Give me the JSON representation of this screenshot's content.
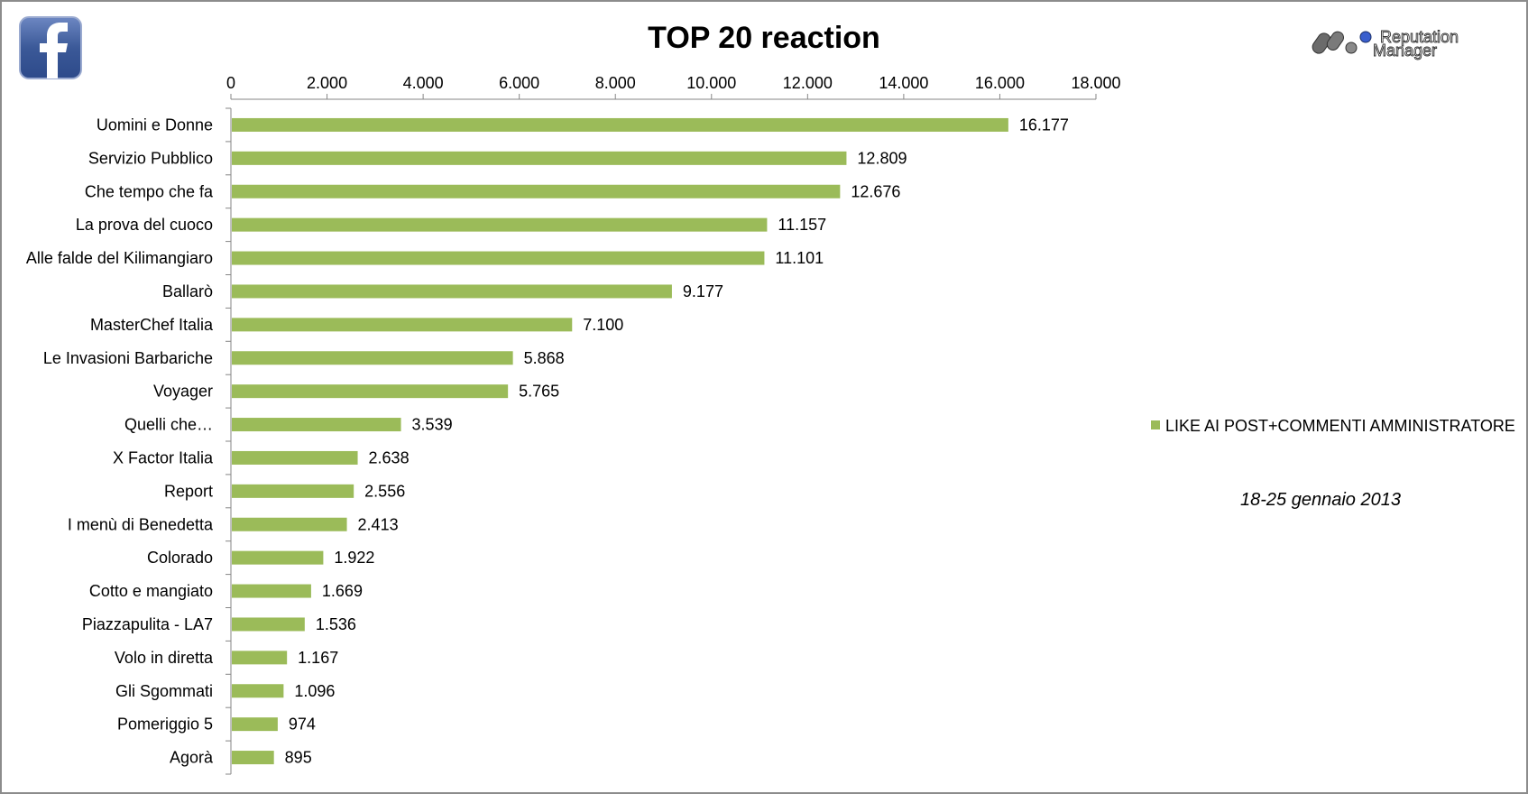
{
  "logos": {
    "facebook_icon": "facebook-icon",
    "brand_line1": "Reputation",
    "brand_line2": "Manager"
  },
  "date_note": "18-25 gennaio 2013",
  "colors": {
    "bar": "#9bbb59",
    "facebook_blue": "#3b5998",
    "axis": "#868686",
    "border": "#8c8c8c"
  },
  "chart_data": {
    "type": "bar",
    "orientation": "horizontal",
    "title": "TOP 20 reaction",
    "xlabel": "",
    "ylabel": "",
    "xlim": [
      0,
      18000
    ],
    "ticks": [
      0,
      2000,
      4000,
      6000,
      8000,
      10000,
      12000,
      14000,
      16000,
      18000
    ],
    "tick_labels": [
      "0",
      "2.000",
      "4.000",
      "6.000",
      "8.000",
      "10.000",
      "12.000",
      "14.000",
      "16.000",
      "18.000"
    ],
    "grid": false,
    "legend_position": "right",
    "categories": [
      "Uomini e Donne",
      "Servizio Pubblico",
      "Che tempo che fa",
      "La prova del cuoco",
      "Alle falde del Kilimangiaro",
      "Ballarò",
      "MasterChef Italia",
      "Le Invasioni Barbariche",
      "Voyager",
      "Quelli che…",
      "X Factor Italia",
      "Report",
      "I menù di Benedetta",
      "Colorado",
      "Cotto e mangiato",
      "Piazzapulita - LA7",
      "Volo in diretta",
      "Gli Sgommati",
      "Pomeriggio 5",
      "Agorà"
    ],
    "series": [
      {
        "name": "LIKE AI POST+COMMENTI AMMINISTRATORE",
        "values": [
          16177,
          12809,
          12676,
          11157,
          11101,
          9177,
          7100,
          5868,
          5765,
          3539,
          2638,
          2556,
          2413,
          1922,
          1669,
          1536,
          1167,
          1096,
          974,
          895
        ],
        "labels": [
          "16.177",
          "12.809",
          "12.676",
          "11.157",
          "11.101",
          "9.177",
          "7.100",
          "5.868",
          "5.765",
          "3.539",
          "2.638",
          "2.556",
          "2.413",
          "1.922",
          "1.669",
          "1.536",
          "1.167",
          "1.096",
          "974",
          "895"
        ]
      }
    ]
  }
}
